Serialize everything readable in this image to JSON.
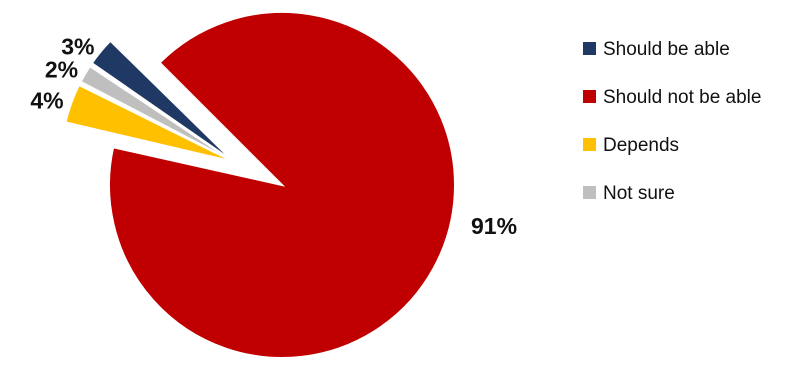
{
  "chart_data": {
    "type": "pie",
    "title": "",
    "legend_position": "right",
    "slices": [
      {
        "name": "Should be able",
        "value": 3,
        "label": "3%",
        "color": "#1f3864",
        "exploded": true
      },
      {
        "name": "Should not be able",
        "value": 91,
        "label": "91%",
        "color": "#c00000",
        "exploded": false
      },
      {
        "name": "Depends",
        "value": 4,
        "label": "4%",
        "color": "#ffc000",
        "exploded": true
      },
      {
        "name": "Not sure",
        "value": 2,
        "label": "2%",
        "color": "#bfbfbf",
        "exploded": true
      }
    ],
    "draw_order": [
      "Should not be able",
      "Depends",
      "Not sure",
      "Should be able"
    ]
  }
}
